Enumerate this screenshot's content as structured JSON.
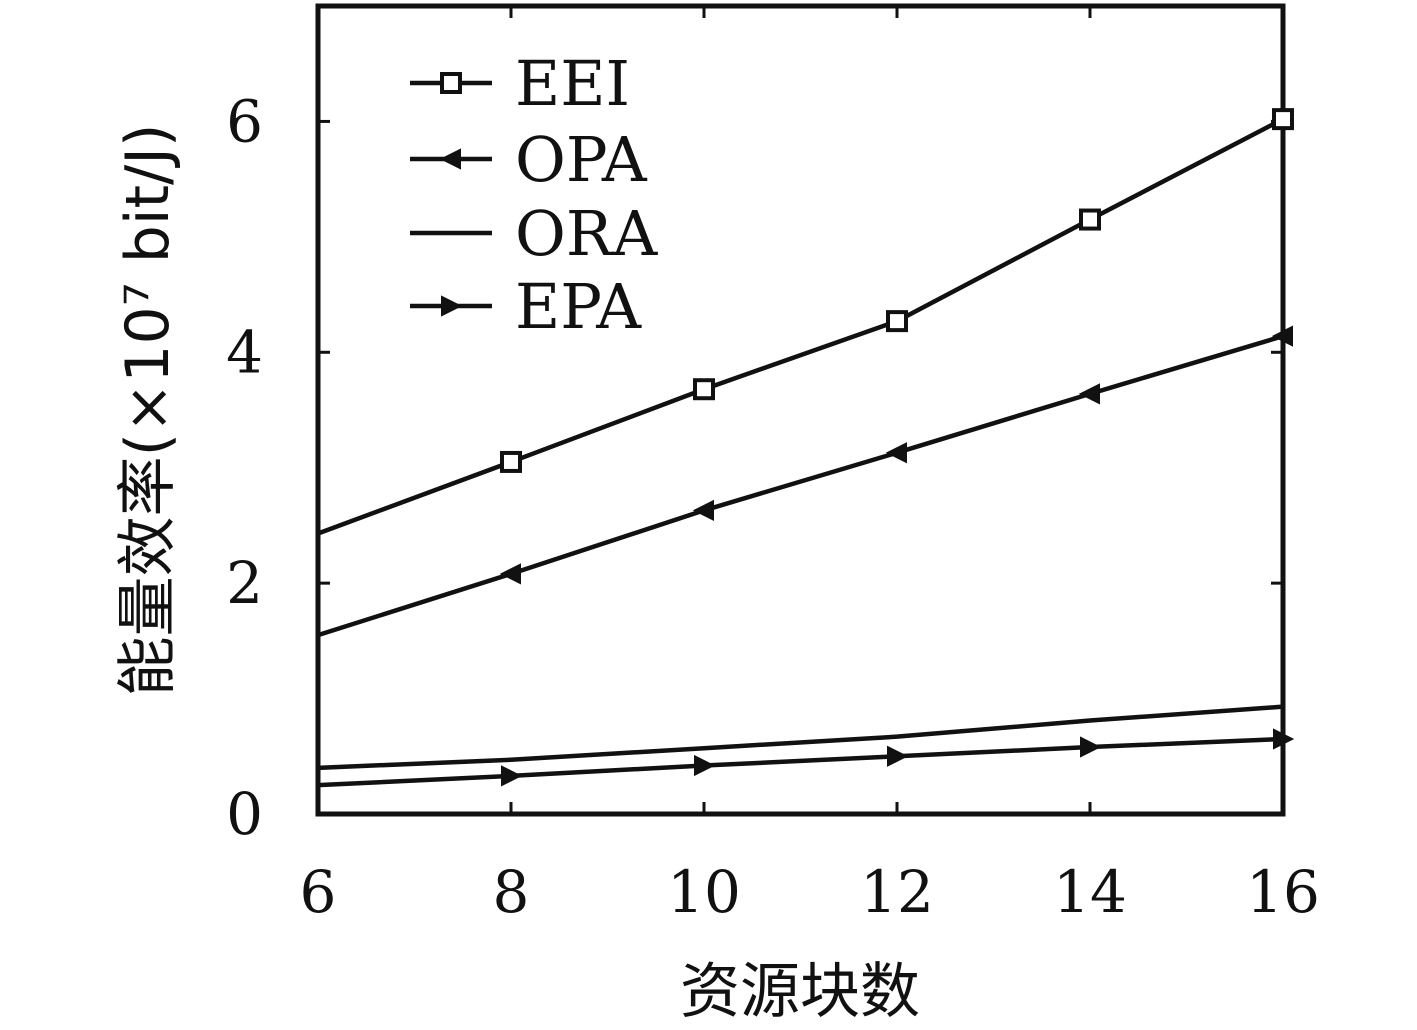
{
  "chart_data": {
    "type": "line",
    "title": "",
    "xlabel": "资源块数",
    "ylabel": "能量效率(×10⁷ bit/J)",
    "x": [
      6,
      8,
      10,
      12,
      14,
      16
    ],
    "xlim": [
      6,
      16
    ],
    "ylim": [
      0,
      7
    ],
    "xticks": [
      6,
      8,
      10,
      12,
      14,
      16
    ],
    "yticks": [
      0,
      2,
      4,
      6
    ],
    "grid": false,
    "legend_position": "top-left",
    "series": [
      {
        "name": "EEI",
        "marker": "square",
        "values": [
          2.43,
          3.05,
          3.68,
          4.27,
          5.15,
          6.02
        ]
      },
      {
        "name": "OPA",
        "marker": "triangle-left",
        "values": [
          1.55,
          2.08,
          2.63,
          3.13,
          3.64,
          4.14
        ]
      },
      {
        "name": "ORA",
        "marker": "none",
        "values": [
          0.4,
          0.47,
          0.57,
          0.67,
          0.81,
          0.93
        ]
      },
      {
        "name": "EPA",
        "marker": "triangle-right",
        "values": [
          0.25,
          0.33,
          0.42,
          0.5,
          0.58,
          0.65
        ]
      }
    ],
    "colors": {
      "line": "#111111",
      "axis": "#111111",
      "background": "#ffffff"
    }
  }
}
